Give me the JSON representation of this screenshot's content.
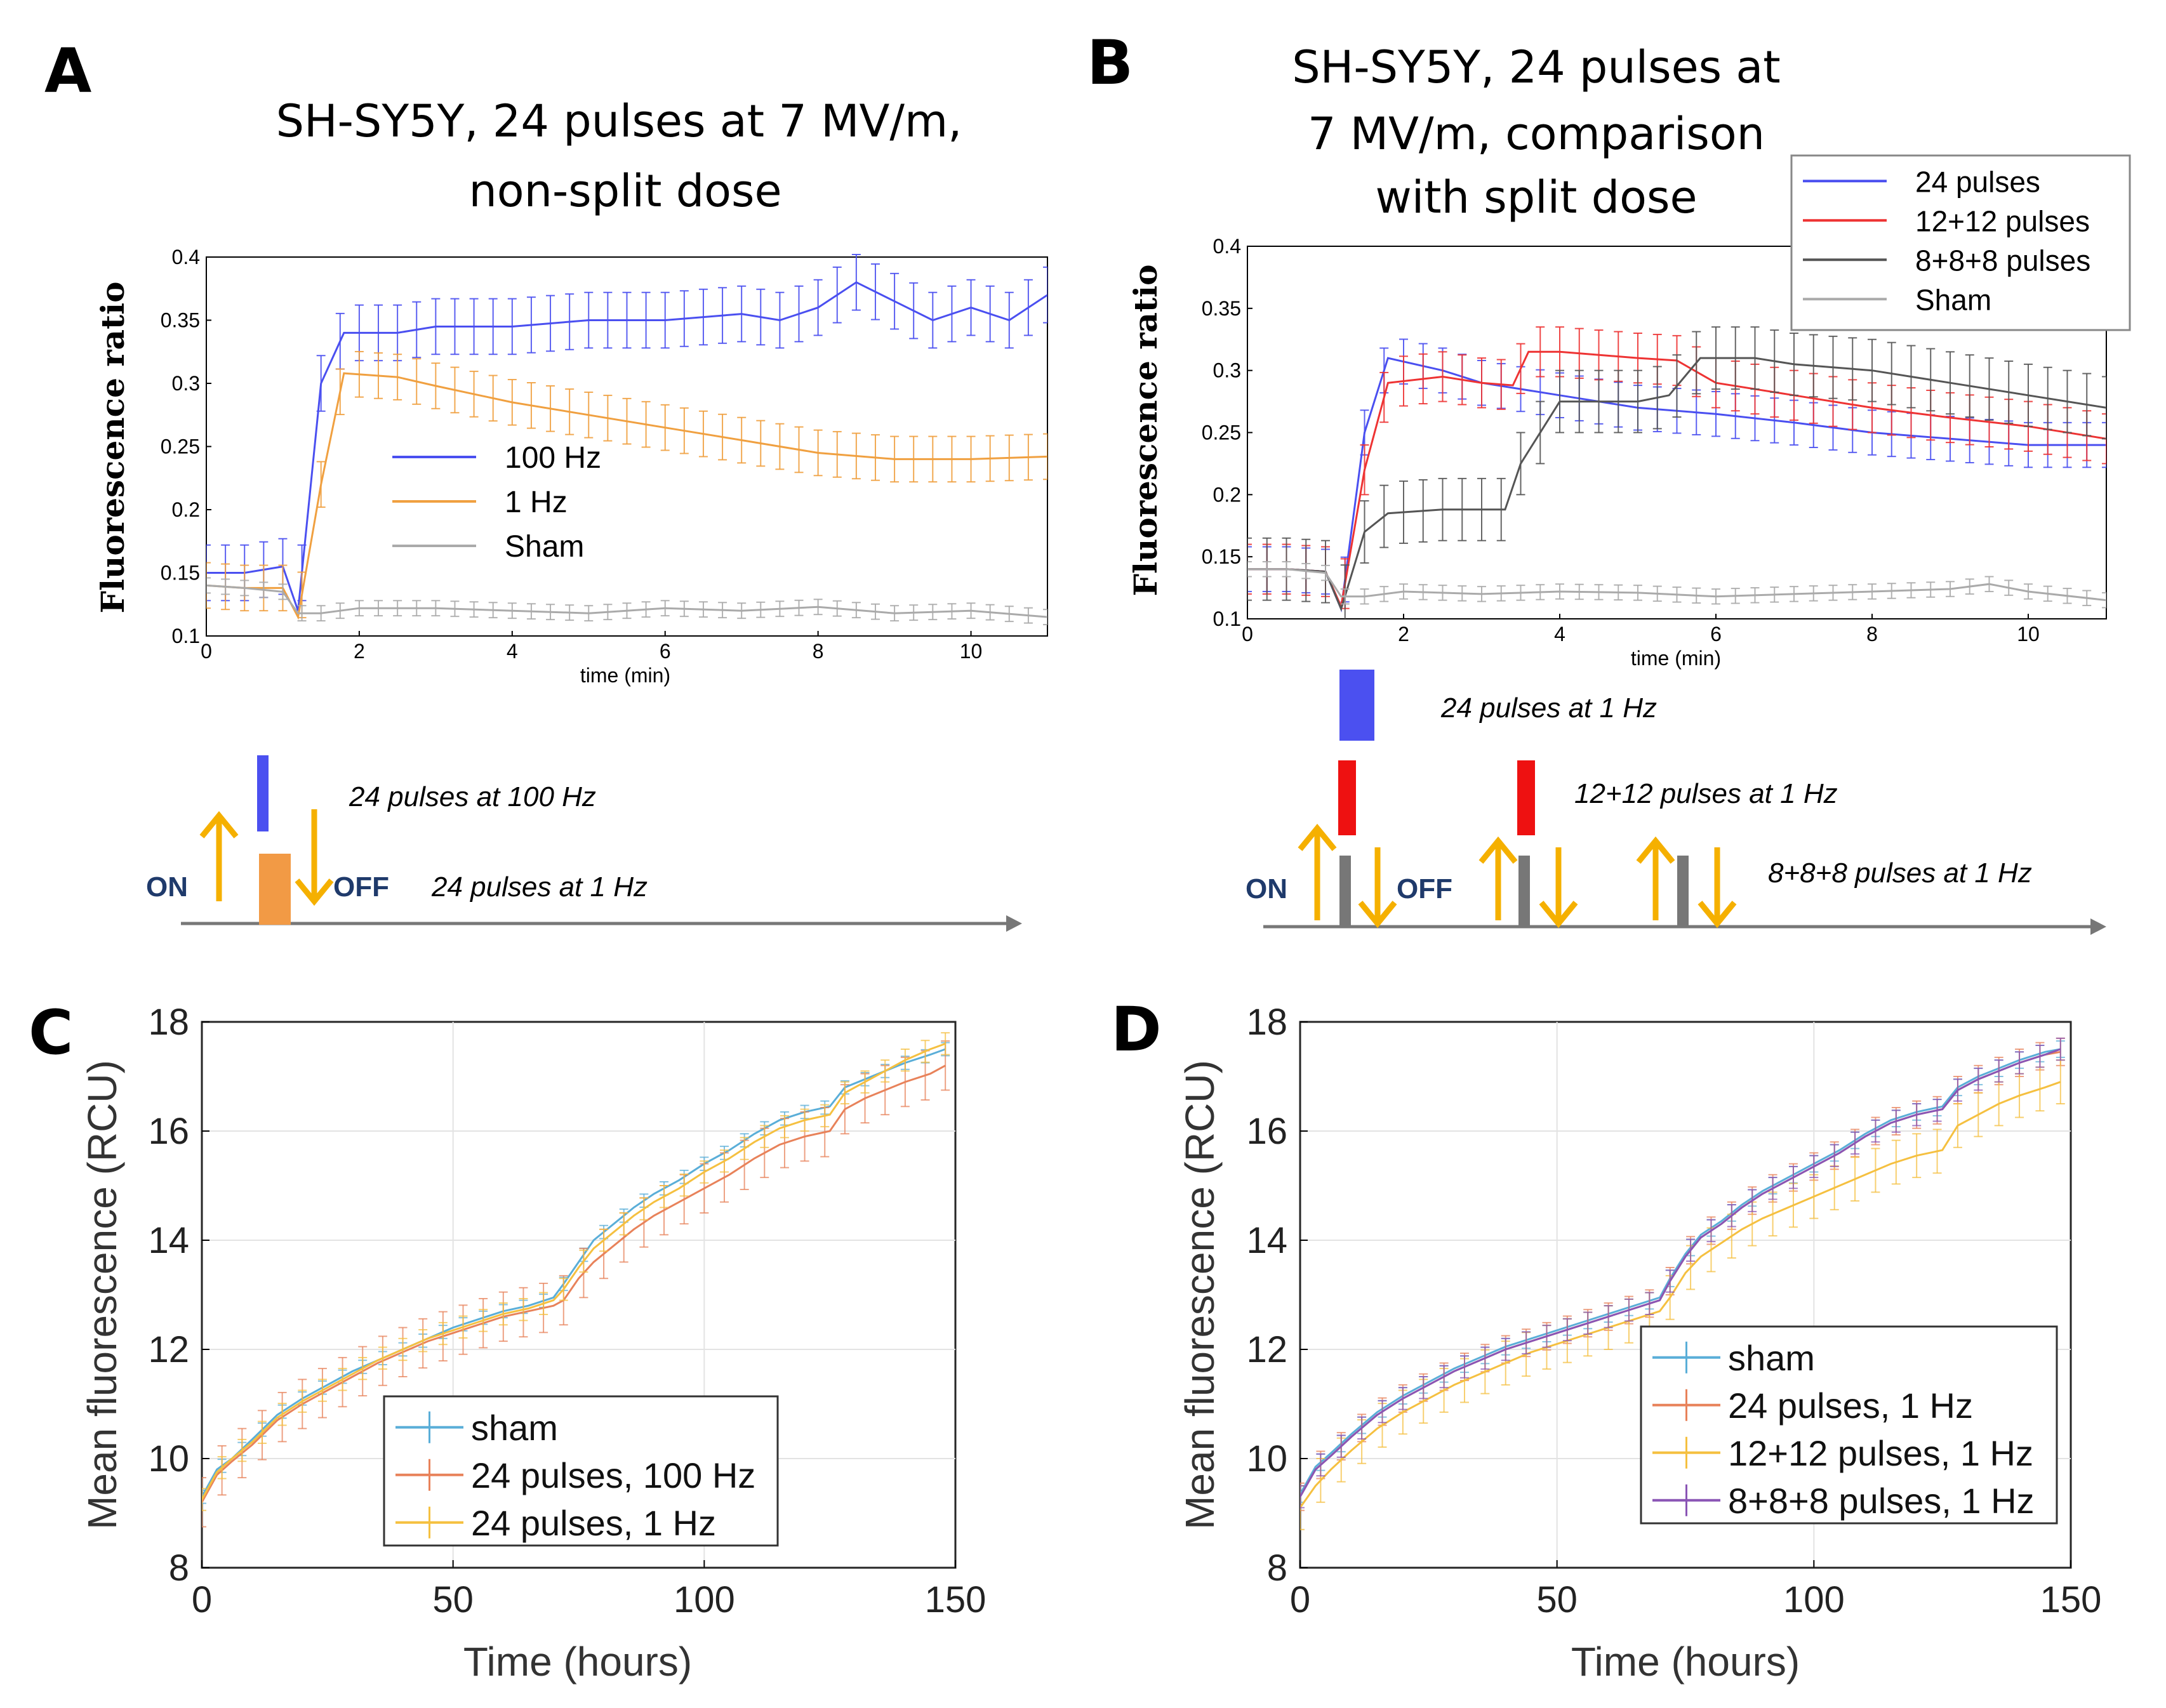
{
  "panels": {
    "A": {
      "letter": "A",
      "title_line1": "SH-SY5Y, 24 pulses at 7 MV/m,",
      "title_line2": "non-split dose",
      "diagram": {
        "on": "ON",
        "off": "OFF",
        "label_100hz": "24 pulses at 100 Hz",
        "label_1hz": "24 pulses at 1 Hz"
      }
    },
    "B": {
      "letter": "B",
      "title_line1": "SH-SY5Y, 24 pulses at",
      "title_line2": "7 MV/m, comparison",
      "title_line3": "with split dose",
      "diagram": {
        "on": "ON",
        "off": "OFF",
        "label_24": "24 pulses at 1 Hz",
        "label_12": "12+12 pulses at 1 Hz",
        "label_8": "8+8+8 pulses at 1 Hz"
      }
    },
    "C": {
      "letter": "C"
    },
    "D": {
      "letter": "D"
    }
  },
  "colors": {
    "blue": "#4a4ff0",
    "orange": "#f0a040",
    "red": "#ee3333",
    "dark_gray": "#555555",
    "light_gray": "#aaaaaa",
    "sham_c": "#5aaed8",
    "pulse100_c": "#e8825a",
    "pulse1_c": "#f5c040",
    "purple_c": "#8a55b5",
    "arrow": "#f5b000",
    "diag_blue": "#4b50f0",
    "diag_orange": "#f29a45",
    "diag_red": "#ee1111",
    "diag_gray": "#777777"
  },
  "chart_data": [
    {
      "id": "A",
      "type": "line",
      "title": "SH-SY5Y, 24 pulses at 7 MV/m, non-split dose",
      "xlabel": "time (min)",
      "ylabel": "Fluorescence ratio",
      "xlim": [
        0,
        11
      ],
      "ylim": [
        0.1,
        0.4
      ],
      "xticks": [
        0,
        2,
        4,
        6,
        8,
        10
      ],
      "yticks": [
        0.1,
        0.15,
        0.2,
        0.25,
        0.3,
        0.35,
        0.4
      ],
      "legend_position": "center",
      "series": [
        {
          "name": "100 Hz",
          "color": "blue",
          "x": [
            0,
            0.5,
            1.0,
            1.2,
            1.5,
            1.8,
            2.5,
            3,
            4,
            5,
            6,
            7,
            7.5,
            8,
            8.5,
            9,
            9.5,
            10,
            10.5,
            11
          ],
          "y": [
            0.15,
            0.15,
            0.155,
            0.12,
            0.3,
            0.34,
            0.34,
            0.345,
            0.345,
            0.35,
            0.35,
            0.355,
            0.35,
            0.36,
            0.38,
            0.365,
            0.35,
            0.36,
            0.35,
            0.37
          ],
          "err": 0.022
        },
        {
          "name": "1 Hz",
          "color": "orange",
          "x": [
            0,
            0.5,
            1.0,
            1.2,
            1.5,
            1.8,
            2.5,
            3,
            4,
            5,
            6,
            7,
            8,
            9,
            10,
            11
          ],
          "y": [
            0.14,
            0.138,
            0.138,
            0.115,
            0.22,
            0.308,
            0.305,
            0.298,
            0.285,
            0.275,
            0.265,
            0.255,
            0.245,
            0.24,
            0.24,
            0.242
          ],
          "err": 0.018
        },
        {
          "name": "Sham",
          "color": "light_gray",
          "x": [
            0,
            0.5,
            1.0,
            1.2,
            1.5,
            2,
            3,
            4,
            5,
            6,
            7,
            8,
            9,
            10,
            11
          ],
          "y": [
            0.14,
            0.138,
            0.135,
            0.118,
            0.118,
            0.122,
            0.122,
            0.12,
            0.118,
            0.122,
            0.12,
            0.123,
            0.118,
            0.12,
            0.115
          ],
          "err": 0.006
        }
      ]
    },
    {
      "id": "B",
      "type": "line",
      "title": "SH-SY5Y, 24 pulses at 7 MV/m, comparison with split dose",
      "xlabel": "time (min)",
      "ylabel": "Fluorescence ratio",
      "xlim": [
        0,
        11
      ],
      "ylim": [
        0.1,
        0.4
      ],
      "xticks": [
        0,
        2,
        4,
        6,
        8,
        10
      ],
      "yticks": [
        0.1,
        0.15,
        0.2,
        0.25,
        0.3,
        0.35,
        0.4
      ],
      "legend_position": "top-right",
      "series": [
        {
          "name": "24 pulses",
          "color": "blue",
          "x": [
            0,
            0.5,
            1.0,
            1.2,
            1.5,
            1.8,
            2.5,
            3,
            4,
            5,
            6,
            7,
            8,
            9,
            10,
            11
          ],
          "y": [
            0.14,
            0.14,
            0.138,
            0.108,
            0.25,
            0.31,
            0.3,
            0.29,
            0.28,
            0.27,
            0.265,
            0.258,
            0.25,
            0.245,
            0.24,
            0.24
          ],
          "err": 0.018
        },
        {
          "name": "12+12 pulses",
          "color": "red",
          "x": [
            0,
            0.5,
            1.0,
            1.2,
            1.5,
            1.8,
            2.5,
            3,
            3.4,
            3.6,
            4,
            5,
            5.5,
            6,
            7,
            8,
            9,
            10,
            11
          ],
          "y": [
            0.14,
            0.14,
            0.138,
            0.11,
            0.22,
            0.29,
            0.295,
            0.29,
            0.288,
            0.315,
            0.315,
            0.31,
            0.308,
            0.29,
            0.28,
            0.27,
            0.262,
            0.255,
            0.245
          ],
          "err": 0.02
        },
        {
          "name": "8+8+8 pulses",
          "color": "dark_gray",
          "x": [
            0,
            0.5,
            1.0,
            1.2,
            1.5,
            1.8,
            2.5,
            3.3,
            3.5,
            4,
            5,
            5.4,
            5.8,
            6.5,
            7,
            8,
            9,
            10,
            11
          ],
          "y": [
            0.14,
            0.14,
            0.138,
            0.108,
            0.17,
            0.185,
            0.188,
            0.188,
            0.225,
            0.275,
            0.275,
            0.28,
            0.31,
            0.31,
            0.305,
            0.3,
            0.29,
            0.28,
            0.27
          ],
          "err": 0.025
        },
        {
          "name": "Sham",
          "color": "light_gray",
          "x": [
            0,
            0.5,
            1.0,
            1.2,
            1.5,
            2,
            3,
            4,
            5,
            6,
            7,
            8,
            9,
            9.5,
            10,
            11
          ],
          "y": [
            0.14,
            0.14,
            0.137,
            0.118,
            0.118,
            0.122,
            0.12,
            0.122,
            0.121,
            0.118,
            0.12,
            0.122,
            0.124,
            0.128,
            0.122,
            0.115
          ],
          "err": 0.006
        }
      ]
    },
    {
      "id": "C",
      "type": "line",
      "xlabel": "Time (hours)",
      "ylabel": "Mean fluorescence (RCU)",
      "xlim": [
        0,
        150
      ],
      "ylim": [
        8,
        18
      ],
      "xticks": [
        0,
        50,
        100,
        150
      ],
      "yticks": [
        8,
        10,
        12,
        14,
        16,
        18
      ],
      "grid": true,
      "legend_position": "bottom-center",
      "series": [
        {
          "name": "sham",
          "color": "sham_c",
          "x": [
            0,
            3,
            6,
            10,
            15,
            20,
            25,
            30,
            35,
            40,
            45,
            50,
            55,
            60,
            65,
            70,
            72,
            75,
            78,
            82,
            86,
            90,
            95,
            100,
            105,
            110,
            115,
            120,
            125,
            128,
            132,
            136,
            140,
            145,
            148
          ],
          "y": [
            9.3,
            9.8,
            10.0,
            10.35,
            10.8,
            11.1,
            11.35,
            11.6,
            11.8,
            12.0,
            12.2,
            12.4,
            12.55,
            12.7,
            12.8,
            12.95,
            13.2,
            13.6,
            14.0,
            14.3,
            14.6,
            14.85,
            15.1,
            15.4,
            15.65,
            15.95,
            16.2,
            16.35,
            16.45,
            16.8,
            16.95,
            17.1,
            17.25,
            17.4,
            17.5
          ],
          "err": 0.12
        },
        {
          "name": "24 pulses, 100 Hz",
          "color": "pulse100_c",
          "x": [
            0,
            3,
            6,
            10,
            15,
            20,
            25,
            30,
            35,
            40,
            45,
            50,
            55,
            60,
            65,
            70,
            72,
            75,
            78,
            82,
            86,
            90,
            95,
            100,
            105,
            110,
            115,
            120,
            125,
            128,
            132,
            136,
            140,
            145,
            148
          ],
          "y": [
            9.2,
            9.7,
            9.95,
            10.25,
            10.7,
            11.0,
            11.25,
            11.5,
            11.75,
            11.95,
            12.15,
            12.3,
            12.45,
            12.6,
            12.7,
            12.8,
            12.9,
            13.3,
            13.6,
            13.9,
            14.2,
            14.45,
            14.7,
            14.95,
            15.2,
            15.5,
            15.75,
            15.9,
            16.0,
            16.4,
            16.6,
            16.75,
            16.9,
            17.05,
            17.2
          ],
          "err": 0.45
        },
        {
          "name": "24 pulses, 1 Hz",
          "color": "pulse1_c",
          "x": [
            0,
            3,
            6,
            10,
            15,
            20,
            25,
            30,
            35,
            40,
            45,
            50,
            55,
            60,
            65,
            70,
            72,
            75,
            78,
            82,
            86,
            90,
            95,
            100,
            105,
            110,
            115,
            120,
            125,
            128,
            132,
            136,
            140,
            145,
            148
          ],
          "y": [
            9.25,
            9.75,
            10.0,
            10.3,
            10.75,
            11.05,
            11.3,
            11.55,
            11.8,
            12.0,
            12.2,
            12.35,
            12.5,
            12.65,
            12.75,
            12.9,
            13.1,
            13.5,
            13.85,
            14.15,
            14.45,
            14.7,
            14.95,
            15.25,
            15.5,
            15.8,
            16.05,
            16.2,
            16.3,
            16.7,
            16.9,
            17.1,
            17.3,
            17.5,
            17.6
          ],
          "err": 0.2
        }
      ]
    },
    {
      "id": "D",
      "type": "line",
      "xlabel": "Time (hours)",
      "ylabel": "Mean fluorescence (RCU)",
      "xlim": [
        0,
        150
      ],
      "ylim": [
        8,
        18
      ],
      "xticks": [
        0,
        50,
        100,
        150
      ],
      "yticks": [
        8,
        10,
        12,
        14,
        16,
        18
      ],
      "grid": true,
      "legend_position": "bottom-center",
      "series": [
        {
          "name": "sham",
          "color": "sham_c",
          "x": [
            0,
            3,
            6,
            10,
            15,
            20,
            25,
            30,
            35,
            40,
            45,
            50,
            55,
            60,
            65,
            70,
            72,
            75,
            78,
            82,
            86,
            90,
            95,
            100,
            105,
            110,
            115,
            120,
            125,
            128,
            132,
            136,
            140,
            145,
            148
          ],
          "y": [
            9.35,
            9.85,
            10.1,
            10.45,
            10.85,
            11.15,
            11.4,
            11.65,
            11.85,
            12.05,
            12.2,
            12.35,
            12.5,
            12.65,
            12.8,
            12.95,
            13.3,
            13.75,
            14.1,
            14.35,
            14.65,
            14.9,
            15.15,
            15.4,
            15.65,
            15.95,
            16.2,
            16.35,
            16.45,
            16.8,
            17.0,
            17.15,
            17.3,
            17.45,
            17.5
          ],
          "err": 0.15
        },
        {
          "name": "24 pulses, 1 Hz",
          "color": "pulse100_c",
          "x": [
            0,
            3,
            6,
            10,
            15,
            20,
            25,
            30,
            35,
            40,
            45,
            50,
            55,
            60,
            65,
            70,
            72,
            75,
            78,
            82,
            86,
            90,
            95,
            100,
            105,
            110,
            115,
            120,
            125,
            128,
            132,
            136,
            140,
            145,
            148
          ],
          "y": [
            9.3,
            9.8,
            10.05,
            10.4,
            10.8,
            11.1,
            11.35,
            11.6,
            11.8,
            12.0,
            12.15,
            12.3,
            12.45,
            12.6,
            12.75,
            12.9,
            13.25,
            13.7,
            14.05,
            14.3,
            14.6,
            14.85,
            15.1,
            15.35,
            15.6,
            15.9,
            16.15,
            16.3,
            16.4,
            16.75,
            16.95,
            17.1,
            17.25,
            17.4,
            17.45
          ],
          "err": 0.25
        },
        {
          "name": "12+12 pulses, 1 Hz",
          "color": "pulse1_c",
          "x": [
            0,
            3,
            6,
            10,
            15,
            20,
            25,
            30,
            35,
            40,
            45,
            50,
            55,
            60,
            65,
            70,
            72,
            75,
            78,
            82,
            86,
            90,
            95,
            100,
            105,
            110,
            115,
            120,
            125,
            128,
            132,
            136,
            140,
            145,
            148
          ],
          "y": [
            9.1,
            9.5,
            9.8,
            10.15,
            10.55,
            10.85,
            11.1,
            11.35,
            11.55,
            11.75,
            11.95,
            12.1,
            12.25,
            12.4,
            12.55,
            12.7,
            12.95,
            13.4,
            13.7,
            13.95,
            14.2,
            14.4,
            14.6,
            14.8,
            15.0,
            15.2,
            15.4,
            15.55,
            15.65,
            16.1,
            16.3,
            16.5,
            16.65,
            16.8,
            16.9
          ],
          "err": 0.4
        },
        {
          "name": "8+8+8 pulses, 1 Hz",
          "color": "purple_c",
          "x": [
            0,
            3,
            6,
            10,
            15,
            20,
            25,
            30,
            35,
            40,
            45,
            50,
            55,
            60,
            65,
            70,
            72,
            75,
            78,
            82,
            86,
            90,
            95,
            100,
            105,
            110,
            115,
            120,
            125,
            128,
            132,
            136,
            140,
            145,
            148
          ],
          "y": [
            9.3,
            9.8,
            10.05,
            10.4,
            10.8,
            11.1,
            11.35,
            11.6,
            11.8,
            12.0,
            12.15,
            12.3,
            12.45,
            12.6,
            12.75,
            12.9,
            13.25,
            13.7,
            14.05,
            14.3,
            14.6,
            14.85,
            15.1,
            15.35,
            15.6,
            15.9,
            16.15,
            16.3,
            16.4,
            16.75,
            16.95,
            17.1,
            17.25,
            17.4,
            17.5
          ],
          "err": 0.2
        }
      ]
    }
  ]
}
